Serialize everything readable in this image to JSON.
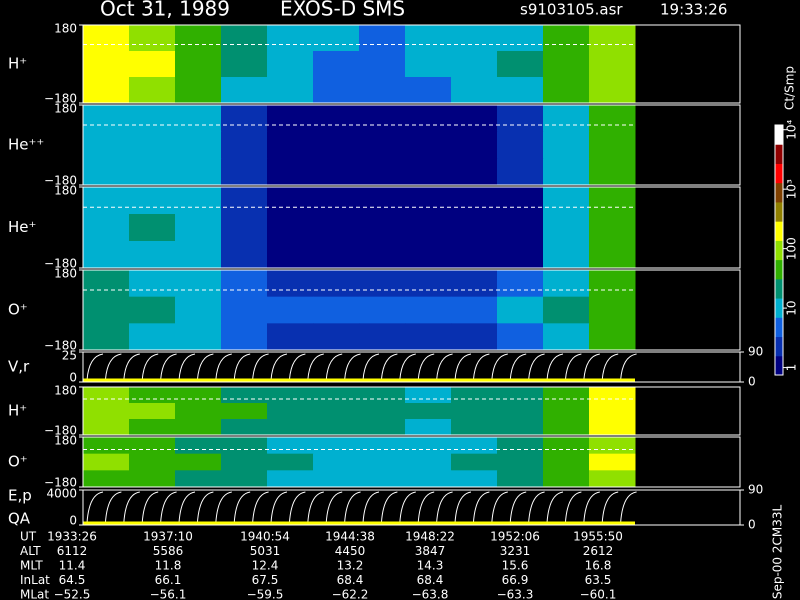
{
  "header": {
    "date": "Oct 31, 1989",
    "instrument": "EXOS-D SMS",
    "file": "s9103105.asr",
    "time": "19:33:26"
  },
  "chart_data": [
    {
      "type": "heatmap",
      "label": "H⁺",
      "ylim": [
        -180,
        180
      ],
      "yticks": [
        180,
        {
          "value": -180,
          "label": "−180"
        }
      ],
      "values": [
        [
          150,
          120,
          30,
          15,
          8,
          6,
          5,
          8,
          10,
          12,
          30,
          80
        ],
        [
          200,
          150,
          40,
          20,
          10,
          5,
          4,
          6,
          10,
          15,
          40,
          120
        ],
        [
          180,
          100,
          30,
          12,
          8,
          5,
          4,
          5,
          8,
          12,
          30,
          90
        ]
      ]
    },
    {
      "type": "heatmap",
      "label": "He⁺⁺",
      "ylim": [
        -180,
        180
      ],
      "yticks": [
        180,
        {
          "value": -180,
          "label": "−180"
        }
      ],
      "values": [
        [
          8,
          10,
          6,
          2,
          1,
          1,
          1,
          1,
          1,
          2,
          8,
          40
        ],
        [
          10,
          12,
          8,
          2,
          1,
          1,
          1,
          1,
          1,
          2,
          10,
          60
        ],
        [
          8,
          10,
          6,
          2,
          1,
          1,
          1,
          1,
          1,
          2,
          8,
          50
        ]
      ]
    },
    {
      "type": "heatmap",
      "label": "He⁺",
      "ylim": [
        -180,
        180
      ],
      "yticks": [
        180,
        {
          "value": -180,
          "label": "−180"
        }
      ],
      "values": [
        [
          8,
          12,
          6,
          2,
          1,
          1,
          1,
          1,
          1,
          1,
          6,
          30
        ],
        [
          10,
          14,
          8,
          2,
          1,
          1,
          1,
          1,
          1,
          1,
          8,
          40
        ],
        [
          8,
          12,
          6,
          2,
          1,
          1,
          1,
          1,
          1,
          1,
          6,
          30
        ]
      ]
    },
    {
      "type": "heatmap",
      "label": "O⁺",
      "ylim": [
        -180,
        180
      ],
      "yticks": [
        180,
        {
          "value": -180,
          "label": "−180"
        }
      ],
      "values": [
        [
          15,
          12,
          6,
          3,
          2,
          2,
          2,
          2,
          2,
          3,
          10,
          30
        ],
        [
          20,
          15,
          8,
          4,
          4,
          5,
          5,
          5,
          5,
          6,
          15,
          60
        ],
        [
          15,
          12,
          6,
          3,
          2,
          2,
          2,
          2,
          2,
          3,
          12,
          40
        ]
      ]
    },
    {
      "type": "trace",
      "label": "V,r",
      "ylim": [
        0,
        25
      ],
      "yticks": [
        25,
        0
      ],
      "y2lim": [
        0,
        90
      ],
      "y2ticks": [
        90,
        0
      ]
    },
    {
      "type": "heatmap",
      "label": "H⁺",
      "ylim": [
        -180,
        180
      ],
      "yticks": [
        180,
        {
          "value": -180,
          "label": "−180"
        }
      ],
      "values": [
        [
          80,
          60,
          40,
          25,
          20,
          15,
          15,
          12,
          15,
          20,
          40,
          150
        ],
        [
          100,
          70,
          45,
          30,
          22,
          18,
          16,
          14,
          16,
          22,
          50,
          180
        ],
        [
          80,
          60,
          40,
          25,
          20,
          15,
          15,
          12,
          15,
          20,
          40,
          150
        ]
      ]
    },
    {
      "type": "heatmap",
      "label": "O⁺",
      "ylim": [
        -180,
        180
      ],
      "yticks": [
        180,
        {
          "value": -180,
          "label": "−180"
        }
      ],
      "values": [
        [
          60,
          40,
          25,
          15,
          12,
          10,
          10,
          10,
          12,
          15,
          30,
          120
        ],
        [
          70,
          50,
          30,
          18,
          14,
          12,
          12,
          12,
          14,
          18,
          40,
          150
        ],
        [
          60,
          40,
          25,
          15,
          12,
          10,
          10,
          10,
          12,
          15,
          30,
          120
        ]
      ]
    },
    {
      "type": "trace",
      "label": "E,p",
      "label2": "QA",
      "ylim": [
        0,
        4000
      ],
      "yticks": [
        4000,
        0
      ],
      "y2lim": [
        0,
        90
      ],
      "y2ticks": [
        90,
        0
      ]
    }
  ],
  "colorbar": {
    "title": "Ct/Smp",
    "clim": [
      0.75,
      12000
    ],
    "ticks": [
      1,
      10,
      100,
      {
        "value": 1000,
        "label": "10³"
      },
      {
        "value": 10000,
        "label": "10⁴"
      }
    ],
    "colors": [
      "#000080",
      "#0830b0",
      "#1060e0",
      "#00b0d0",
      "#009070",
      "#30b000",
      "#90e000",
      "#ffff00",
      "#908000",
      "#804000",
      "#ff0000",
      "#900000",
      "#ffffff"
    ]
  },
  "footer": "Sep-00 2CM33L",
  "table": {
    "rows": [
      [
        "UT",
        "1933:26",
        "1937:10",
        "1940:54",
        "1944:38",
        "1948:22",
        "1952:06",
        "1955:50"
      ],
      [
        "ALT",
        "6112",
        "5586",
        "5031",
        "4450",
        "3847",
        "3231",
        "2612"
      ],
      [
        "MLT",
        "11.4",
        "11.8",
        "12.4",
        "13.2",
        "14.3",
        "15.6",
        "16.8"
      ],
      [
        "InLat",
        "64.5",
        "66.1",
        "67.5",
        "68.4",
        "68.4",
        "66.9",
        "63.5"
      ],
      [
        "MLat",
        "−52.5",
        "−56.1",
        "−59.5",
        "−62.2",
        "−63.8",
        "−63.3",
        "−60.1"
      ]
    ]
  }
}
